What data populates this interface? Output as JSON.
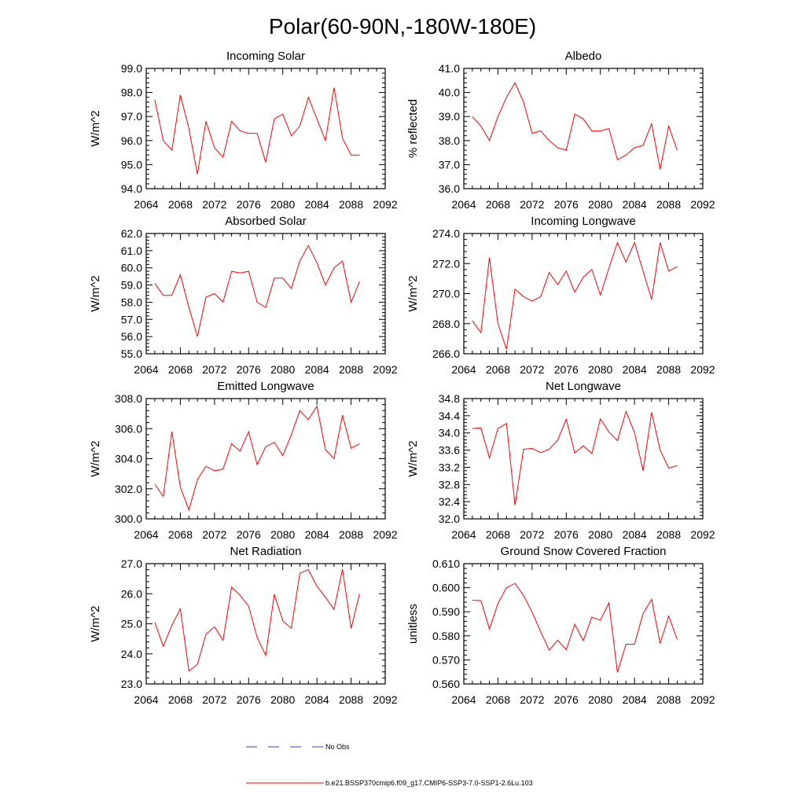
{
  "figure": {
    "title": "Polar(60-90N,-180W-180E)"
  },
  "legend": {
    "entries": [
      {
        "label": "No Obs",
        "color": "#3b3bd9",
        "style": "dashed"
      },
      {
        "label": "b.e21.BSSP370cmip6.f09_g17.CMIP6-SSP3-7.0-SSP1-2.6Lu.103",
        "color": "#ff0000",
        "style": "solid"
      }
    ]
  },
  "chart_data": [
    {
      "type": "line",
      "title": "Incoming Solar",
      "ylabel": "W/m^2",
      "xlim": [
        2064,
        2092
      ],
      "ylim": [
        94.0,
        99.0
      ],
      "xticks": [
        "2064",
        "2068",
        "2072",
        "2076",
        "2080",
        "2084",
        "2088",
        "2092"
      ],
      "yticks": [
        "94.0",
        "95.0",
        "96.0",
        "97.0",
        "98.0",
        "99.0"
      ],
      "series": [
        {
          "color": "#ff0000",
          "x": [
            2065,
            2066,
            2067,
            2068,
            2069,
            2070,
            2071,
            2072,
            2073,
            2074,
            2075,
            2076,
            2077,
            2078,
            2079,
            2080,
            2081,
            2082,
            2083,
            2084,
            2085,
            2086,
            2087,
            2088,
            2089
          ],
          "y": [
            97.7,
            96.0,
            95.6,
            97.9,
            96.5,
            94.6,
            96.8,
            95.7,
            95.3,
            96.8,
            96.4,
            96.3,
            96.3,
            95.1,
            96.9,
            97.1,
            96.2,
            96.6,
            97.8,
            96.9,
            96.0,
            98.2,
            96.1,
            95.4,
            95.4
          ]
        }
      ]
    },
    {
      "type": "line",
      "title": "Albedo",
      "ylabel": "% reflected",
      "xlim": [
        2064,
        2092
      ],
      "ylim": [
        36.0,
        41.0
      ],
      "xticks": [
        "2064",
        "2068",
        "2072",
        "2076",
        "2080",
        "2084",
        "2088",
        "2092"
      ],
      "yticks": [
        "36.0",
        "37.0",
        "38.0",
        "39.0",
        "40.0",
        "41.0"
      ],
      "series": [
        {
          "color": "#ff0000",
          "x": [
            2065,
            2066,
            2067,
            2068,
            2069,
            2070,
            2071,
            2072,
            2073,
            2074,
            2075,
            2076,
            2077,
            2078,
            2079,
            2080,
            2081,
            2082,
            2083,
            2084,
            2085,
            2086,
            2087,
            2088,
            2089
          ],
          "y": [
            39.0,
            38.6,
            38.0,
            39.0,
            39.8,
            40.4,
            39.6,
            38.3,
            38.4,
            38.0,
            37.7,
            37.6,
            39.1,
            38.9,
            38.4,
            38.4,
            38.5,
            37.2,
            37.4,
            37.7,
            37.8,
            38.7,
            36.8,
            38.6,
            37.6
          ]
        }
      ]
    },
    {
      "type": "line",
      "title": "Absorbed Solar",
      "ylabel": "W/m^2",
      "xlim": [
        2064,
        2092
      ],
      "ylim": [
        55.0,
        62.0
      ],
      "xticks": [
        "2064",
        "2068",
        "2072",
        "2076",
        "2080",
        "2084",
        "2088",
        "2092"
      ],
      "yticks": [
        "55.0",
        "56.0",
        "57.0",
        "58.0",
        "59.0",
        "60.0",
        "61.0",
        "62.0"
      ],
      "series": [
        {
          "color": "#ff0000",
          "x": [
            2065,
            2066,
            2067,
            2068,
            2069,
            2070,
            2071,
            2072,
            2073,
            2074,
            2075,
            2076,
            2077,
            2078,
            2079,
            2080,
            2081,
            2082,
            2083,
            2084,
            2085,
            2086,
            2087,
            2088,
            2089
          ],
          "y": [
            59.1,
            58.4,
            58.4,
            59.6,
            57.7,
            56.0,
            58.3,
            58.5,
            58.0,
            59.8,
            59.7,
            59.8,
            58.0,
            57.7,
            59.4,
            59.4,
            58.8,
            60.4,
            61.3,
            60.3,
            59.0,
            60.0,
            60.4,
            58.0,
            59.2
          ]
        }
      ]
    },
    {
      "type": "line",
      "title": "Incoming Longwave",
      "ylabel": "W/m^2",
      "xlim": [
        2064,
        2092
      ],
      "ylim": [
        266.0,
        274.0
      ],
      "xticks": [
        "2064",
        "2068",
        "2072",
        "2076",
        "2080",
        "2084",
        "2088",
        "2092"
      ],
      "yticks": [
        "266.0",
        "268.0",
        "270.0",
        "272.0",
        "274.0"
      ],
      "series": [
        {
          "color": "#ff0000",
          "x": [
            2065,
            2066,
            2067,
            2068,
            2069,
            2070,
            2071,
            2072,
            2073,
            2074,
            2075,
            2076,
            2077,
            2078,
            2079,
            2080,
            2081,
            2082,
            2083,
            2084,
            2085,
            2086,
            2087,
            2088,
            2089
          ],
          "y": [
            268.2,
            267.4,
            272.4,
            268.0,
            266.3,
            270.3,
            269.8,
            269.5,
            269.8,
            271.4,
            270.6,
            271.5,
            270.1,
            271.1,
            271.6,
            269.9,
            271.7,
            273.4,
            272.1,
            273.4,
            271.5,
            269.6,
            273.4,
            271.5,
            271.8
          ]
        }
      ]
    },
    {
      "type": "line",
      "title": "Emitted Longwave",
      "ylabel": "W/m^2",
      "xlim": [
        2064,
        2092
      ],
      "ylim": [
        300.0,
        308.0
      ],
      "xticks": [
        "2064",
        "2068",
        "2072",
        "2076",
        "2080",
        "2084",
        "2088",
        "2092"
      ],
      "yticks": [
        "300.0",
        "302.0",
        "304.0",
        "306.0",
        "308.0"
      ],
      "series": [
        {
          "color": "#ff0000",
          "x": [
            2065,
            2066,
            2067,
            2068,
            2069,
            2070,
            2071,
            2072,
            2073,
            2074,
            2075,
            2076,
            2077,
            2078,
            2079,
            2080,
            2081,
            2082,
            2083,
            2084,
            2085,
            2086,
            2087,
            2088,
            2089
          ],
          "y": [
            302.3,
            301.5,
            305.8,
            302.1,
            300.6,
            302.6,
            303.5,
            303.2,
            303.3,
            305.0,
            304.5,
            305.8,
            303.6,
            304.8,
            305.1,
            304.2,
            305.6,
            307.2,
            306.6,
            307.5,
            304.6,
            304.0,
            306.9,
            304.7,
            305.0
          ]
        }
      ]
    },
    {
      "type": "line",
      "title": "Net Longwave",
      "ylabel": "W/m^2",
      "xlim": [
        2064,
        2092
      ],
      "ylim": [
        32.0,
        34.8
      ],
      "xticks": [
        "2064",
        "2068",
        "2072",
        "2076",
        "2080",
        "2084",
        "2088",
        "2092"
      ],
      "yticks": [
        "32.0",
        "32.4",
        "32.8",
        "33.2",
        "33.6",
        "34.0",
        "34.4",
        "34.8"
      ],
      "series": [
        {
          "color": "#ff0000",
          "x": [
            2065,
            2066,
            2067,
            2068,
            2069,
            2070,
            2071,
            2072,
            2073,
            2074,
            2075,
            2076,
            2077,
            2078,
            2079,
            2080,
            2081,
            2082,
            2083,
            2084,
            2085,
            2086,
            2087,
            2088,
            2089
          ],
          "y": [
            34.1,
            34.12,
            33.42,
            34.1,
            34.22,
            32.32,
            33.62,
            33.64,
            33.54,
            33.62,
            33.83,
            34.32,
            33.53,
            33.7,
            33.52,
            34.33,
            34.02,
            33.82,
            34.5,
            34.01,
            33.12,
            34.48,
            33.6,
            33.18,
            33.24
          ]
        }
      ]
    },
    {
      "type": "line",
      "title": "Net Radiation",
      "ylabel": "W/m^2",
      "xlim": [
        2064,
        2092
      ],
      "ylim": [
        23.0,
        27.0
      ],
      "xticks": [
        "2064",
        "2068",
        "2072",
        "2076",
        "2080",
        "2084",
        "2088",
        "2092"
      ],
      "yticks": [
        "23.0",
        "24.0",
        "25.0",
        "26.0",
        "27.0"
      ],
      "series": [
        {
          "color": "#ff0000",
          "x": [
            2065,
            2066,
            2067,
            2068,
            2069,
            2070,
            2071,
            2072,
            2073,
            2074,
            2075,
            2076,
            2077,
            2078,
            2079,
            2080,
            2081,
            2082,
            2083,
            2084,
            2085,
            2086,
            2087,
            2088,
            2089
          ],
          "y": [
            25.05,
            24.25,
            24.95,
            25.5,
            23.43,
            23.65,
            24.65,
            24.9,
            24.45,
            26.22,
            25.95,
            25.58,
            24.55,
            23.95,
            25.98,
            25.1,
            24.85,
            26.68,
            26.8,
            26.25,
            25.88,
            25.48,
            26.82,
            24.85,
            26.0
          ]
        }
      ]
    },
    {
      "type": "line",
      "title": "Ground Snow Covered Fraction",
      "ylabel": "unitless",
      "xlim": [
        2064,
        2092
      ],
      "ylim": [
        0.56,
        0.61
      ],
      "xticks": [
        "2064",
        "2068",
        "2072",
        "2076",
        "2080",
        "2084",
        "2088",
        "2092"
      ],
      "yticks": [
        "0.560",
        "0.570",
        "0.580",
        "0.590",
        "0.600",
        "0.610"
      ],
      "series": [
        {
          "color": "#ff0000",
          "x": [
            2065,
            2066,
            2067,
            2068,
            2069,
            2070,
            2071,
            2072,
            2073,
            2074,
            2075,
            2076,
            2077,
            2078,
            2079,
            2080,
            2081,
            2082,
            2083,
            2084,
            2085,
            2086,
            2087,
            2088,
            2089
          ],
          "y": [
            0.5948,
            0.5946,
            0.5828,
            0.5935,
            0.6,
            0.6018,
            0.5968,
            0.5898,
            0.5818,
            0.574,
            0.5782,
            0.5742,
            0.5848,
            0.578,
            0.5878,
            0.5865,
            0.5937,
            0.5648,
            0.5765,
            0.5765,
            0.5892,
            0.5952,
            0.5768,
            0.5882,
            0.5785
          ]
        }
      ]
    }
  ]
}
